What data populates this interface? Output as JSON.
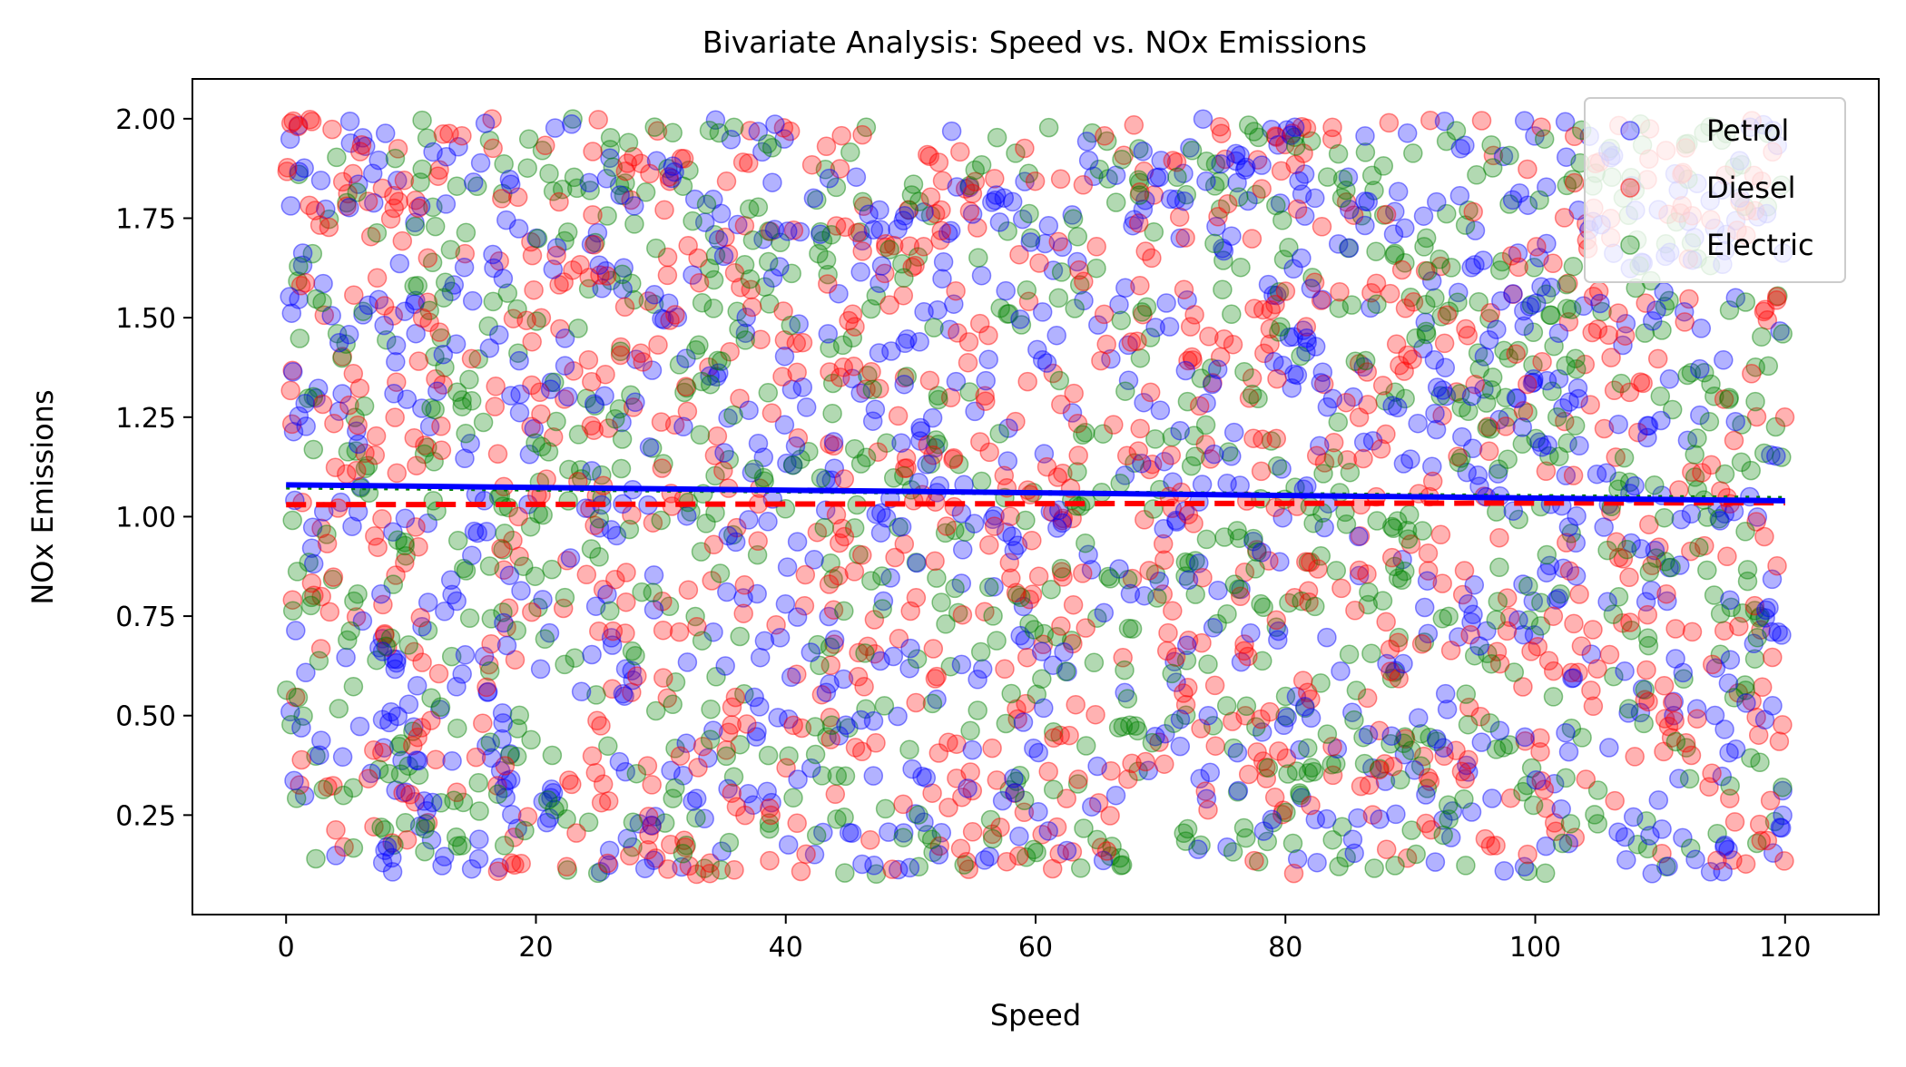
{
  "chart_data": {
    "type": "scatter",
    "title": "Bivariate Analysis: Speed vs. NOx Emissions",
    "xlabel": "Speed",
    "ylabel": "NOx Emissions",
    "xlim": [
      -7.5,
      127.5
    ],
    "ylim": [
      0.0,
      2.1
    ],
    "x_ticks": [
      0,
      20,
      40,
      60,
      80,
      100,
      120
    ],
    "x_tick_labels": [
      "0",
      "20",
      "40",
      "60",
      "80",
      "100",
      "120"
    ],
    "y_ticks": [
      0.25,
      0.5,
      0.75,
      1.0,
      1.25,
      1.5,
      1.75,
      2.0
    ],
    "y_tick_labels": [
      "0.25",
      "0.50",
      "0.75",
      "1.00",
      "1.25",
      "1.50",
      "1.75",
      "2.00"
    ],
    "grid": false,
    "legend_position": "top-right",
    "point_alpha": 0.3,
    "points_per_series": 1000,
    "x_range_of_points": [
      0,
      120
    ],
    "y_range_of_points": [
      0.1,
      2.0
    ],
    "series": [
      {
        "name": "Petrol",
        "color": "#0000ff",
        "trend_line": {
          "style": "solid",
          "x": [
            0,
            120
          ],
          "y": [
            1.08,
            1.04
          ]
        }
      },
      {
        "name": "Diesel",
        "color": "#ff0000",
        "trend_line": {
          "style": "dashed",
          "x": [
            0,
            120
          ],
          "y": [
            1.03,
            1.035
          ]
        }
      },
      {
        "name": "Electric",
        "color": "#008000",
        "trend_line": {
          "style": "dotted",
          "x": [
            0,
            120
          ],
          "y": [
            1.075,
            1.045
          ]
        }
      }
    ]
  }
}
